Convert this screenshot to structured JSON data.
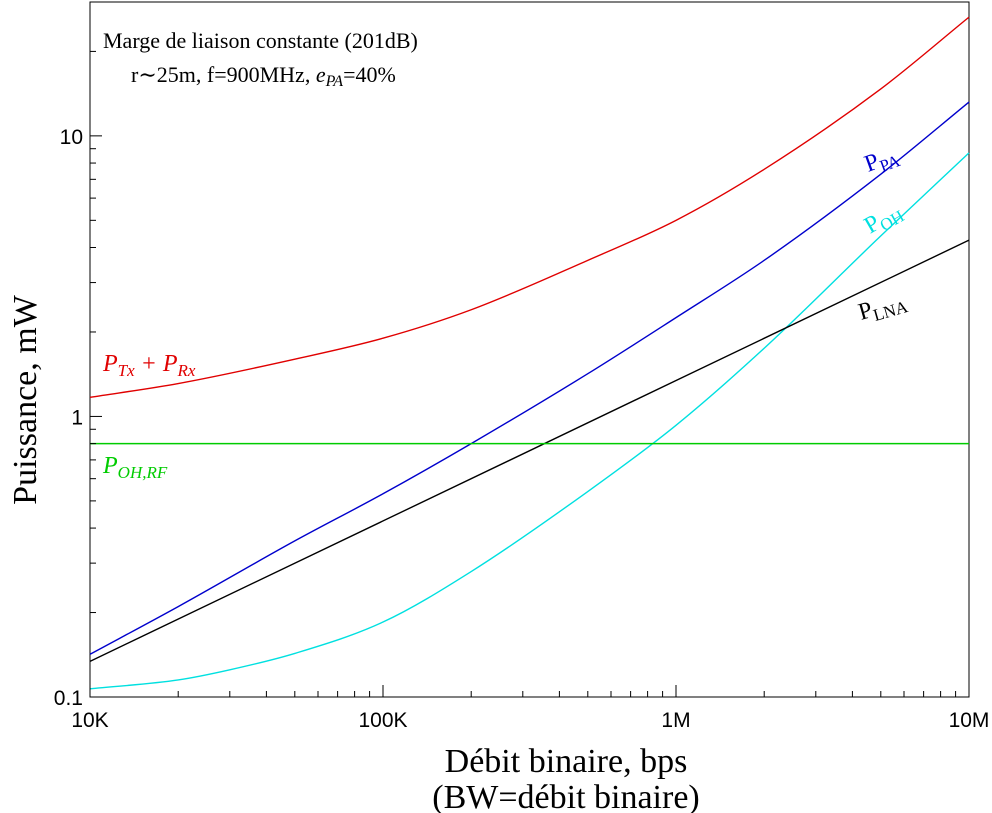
{
  "chart_data": {
    "type": "line",
    "title": "",
    "annotation_lines": [
      "Marge de liaison constante (201dB)",
      "r∼25m, f=900MHz, "
    ],
    "annotation_epa": {
      "symbol": "e",
      "sub": "PA",
      "value": "=40%"
    },
    "xlabel": "Débit binaire, bps",
    "xlabel2": "(BW=débit binaire)",
    "ylabel": "Puissance, mW",
    "x_scale": "log",
    "y_scale": "log",
    "xlim": [
      10000,
      10000000
    ],
    "ylim": [
      0.1,
      30
    ],
    "x_ticks": [
      {
        "value": 10000,
        "label": "10K"
      },
      {
        "value": 100000,
        "label": "100K"
      },
      {
        "value": 1000000,
        "label": "1M"
      },
      {
        "value": 10000000,
        "label": "10M"
      }
    ],
    "y_ticks": [
      {
        "value": 0.1,
        "label": "0.1"
      },
      {
        "value": 1,
        "label": "1"
      },
      {
        "value": 10,
        "label": "10"
      }
    ],
    "grid": false,
    "series": [
      {
        "name": "P_Tx + P_Rx",
        "label_main": "P",
        "label_parts": [
          {
            "text": "P",
            "sub": "Tx"
          },
          {
            "text": " + "
          },
          {
            "text": "P",
            "sub": "Rx"
          }
        ],
        "color": "#e00000",
        "x": [
          10000,
          20000,
          50000,
          100000,
          200000,
          500000,
          1000000,
          2000000,
          5000000,
          10000000
        ],
        "y": [
          1.17,
          1.31,
          1.6,
          1.9,
          2.4,
          3.6,
          5.0,
          7.6,
          14.7,
          26.5
        ]
      },
      {
        "name": "P_PA",
        "label_parts": [
          {
            "text": "P",
            "sub": "PA"
          }
        ],
        "color": "#0000cc",
        "x": [
          10000,
          20000,
          50000,
          100000,
          200000,
          500000,
          1000000,
          2000000,
          5000000,
          10000000
        ],
        "y": [
          0.142,
          0.21,
          0.36,
          0.53,
          0.8,
          1.42,
          2.25,
          3.6,
          7.3,
          13.2
        ]
      },
      {
        "name": "P_OH",
        "label_parts": [
          {
            "text": "P",
            "sub": "OH"
          }
        ],
        "color": "#00e0e0",
        "x": [
          10000,
          20000,
          30000,
          50000,
          100000,
          200000,
          500000,
          1000000,
          2000000,
          5000000,
          10000000
        ],
        "y": [
          0.107,
          0.115,
          0.125,
          0.143,
          0.185,
          0.28,
          0.54,
          0.93,
          1.75,
          4.4,
          8.7
        ]
      },
      {
        "name": "P_LNA",
        "label_parts": [
          {
            "text": "P",
            "sub": "LNA"
          }
        ],
        "color": "#000000",
        "x": [
          10000,
          10000000
        ],
        "y": [
          0.134,
          4.25
        ]
      },
      {
        "name": "P_OH,RF",
        "label_parts": [
          {
            "text": "P",
            "sub": "OH,RF"
          }
        ],
        "color": "#00cc00",
        "x": [
          10000,
          10000000
        ],
        "y": [
          0.8,
          0.8
        ]
      }
    ]
  }
}
